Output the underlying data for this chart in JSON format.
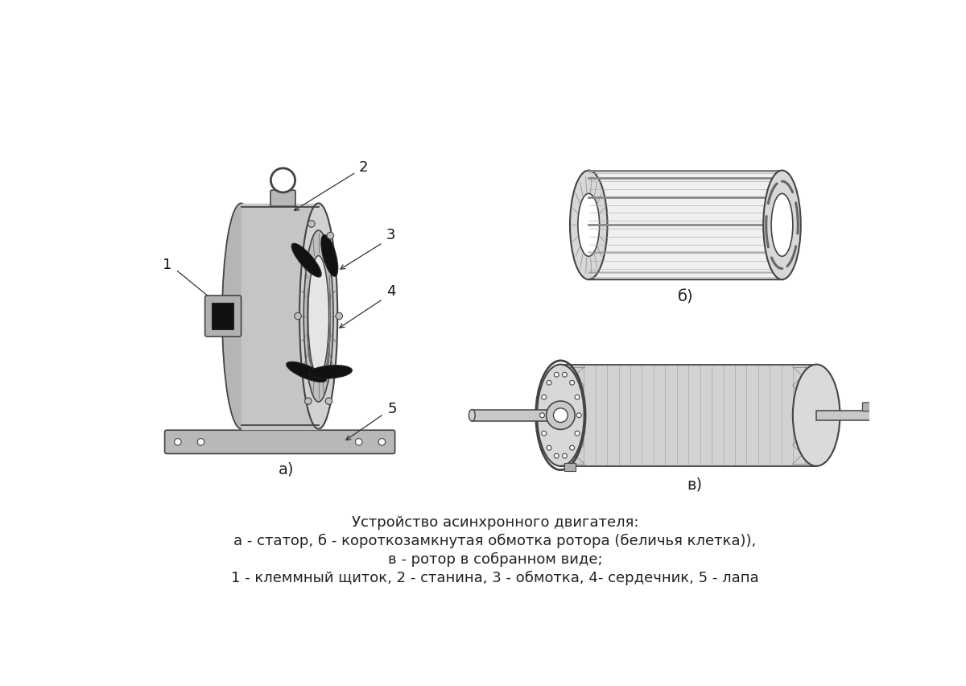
{
  "bg_color": "#ffffff",
  "title_line1": "Устройство асинхронного двигателя:",
  "title_line2": "а - статор, б - короткозамкнутая обмотка ротора (беличья клетка)),",
  "title_line3": "в - ротор в собранном виде;",
  "title_line4": "1 - клеммный щиток, 2 - станина, 3 - обмотка, 4- сердечник, 5 - лапа",
  "label_a": "а)",
  "label_b": "б)",
  "label_v": "в)",
  "font_size_caption": 13,
  "font_size_labels": 14,
  "font_size_numbers": 13,
  "color_dark": "#333333",
  "color_mid": "#888888",
  "color_light": "#d8d8d8",
  "color_lighter": "#eeeeee",
  "color_black": "#111111",
  "color_edge": "#555555"
}
